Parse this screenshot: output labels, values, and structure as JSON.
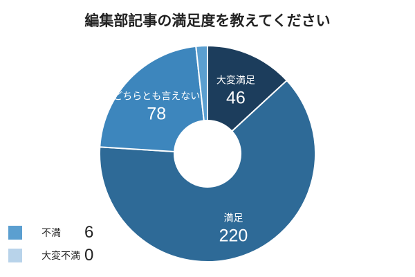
{
  "title": "編集部記事の満足度を教えてください",
  "chart_data": {
    "type": "pie",
    "variant": "donut",
    "categories": [
      "大変満足",
      "満足",
      "どちらとも言えない",
      "不満",
      "大変不満"
    ],
    "values": [
      46,
      220,
      78,
      6,
      0
    ],
    "colors": [
      "#1c3d5c",
      "#2e6a97",
      "#3d86bd",
      "#5b9fd0",
      "#b8d3ea"
    ],
    "legend_placement": "bottom-left",
    "legend": [
      {
        "label": "不満",
        "value": "6",
        "color": "#5b9fd0"
      },
      {
        "label": "大変不満",
        "value": "0",
        "color": "#b8d3ea"
      }
    ]
  }
}
